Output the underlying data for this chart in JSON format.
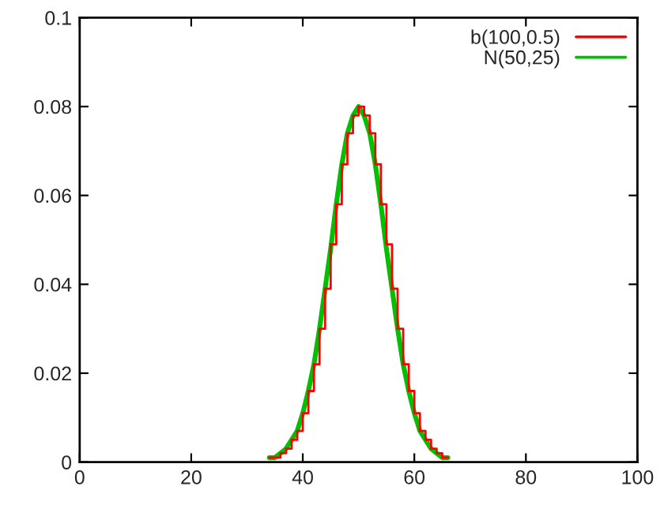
{
  "chart_data": {
    "type": "line",
    "x": [
      34,
      35,
      36,
      37,
      38,
      39,
      40,
      41,
      42,
      43,
      44,
      45,
      46,
      47,
      48,
      49,
      50,
      51,
      52,
      53,
      54,
      55,
      56,
      57,
      58,
      59,
      60,
      61,
      62,
      63,
      64,
      65,
      66
    ],
    "series": [
      {
        "name": "b(100,0.5)",
        "color": "#ff0000",
        "type": "step",
        "values": [
          0.001,
          0.001,
          0.002,
          0.003,
          0.005,
          0.007,
          0.011,
          0.016,
          0.022,
          0.03,
          0.039,
          0.049,
          0.058,
          0.067,
          0.074,
          0.078,
          0.08,
          0.078,
          0.074,
          0.067,
          0.058,
          0.049,
          0.039,
          0.03,
          0.022,
          0.016,
          0.011,
          0.007,
          0.005,
          0.003,
          0.002,
          0.001,
          0.001
        ]
      },
      {
        "name": "N(50,25)",
        "color": "#00c000",
        "values": [
          0.001,
          0.001,
          0.002,
          0.003,
          0.005,
          0.007,
          0.011,
          0.016,
          0.022,
          0.03,
          0.039,
          0.048,
          0.058,
          0.067,
          0.074,
          0.078,
          0.08,
          0.078,
          0.074,
          0.067,
          0.058,
          0.048,
          0.039,
          0.03,
          0.022,
          0.016,
          0.011,
          0.007,
          0.005,
          0.003,
          0.002,
          0.001,
          0.001
        ]
      }
    ],
    "xlim": [
      0,
      100
    ],
    "xticks": [
      0,
      20,
      40,
      60,
      80,
      100
    ],
    "ylim": [
      0,
      0.1
    ],
    "yticks": [
      0,
      0.02,
      0.04,
      0.06,
      0.08,
      0.1
    ],
    "grid": false,
    "legend": "top right"
  }
}
